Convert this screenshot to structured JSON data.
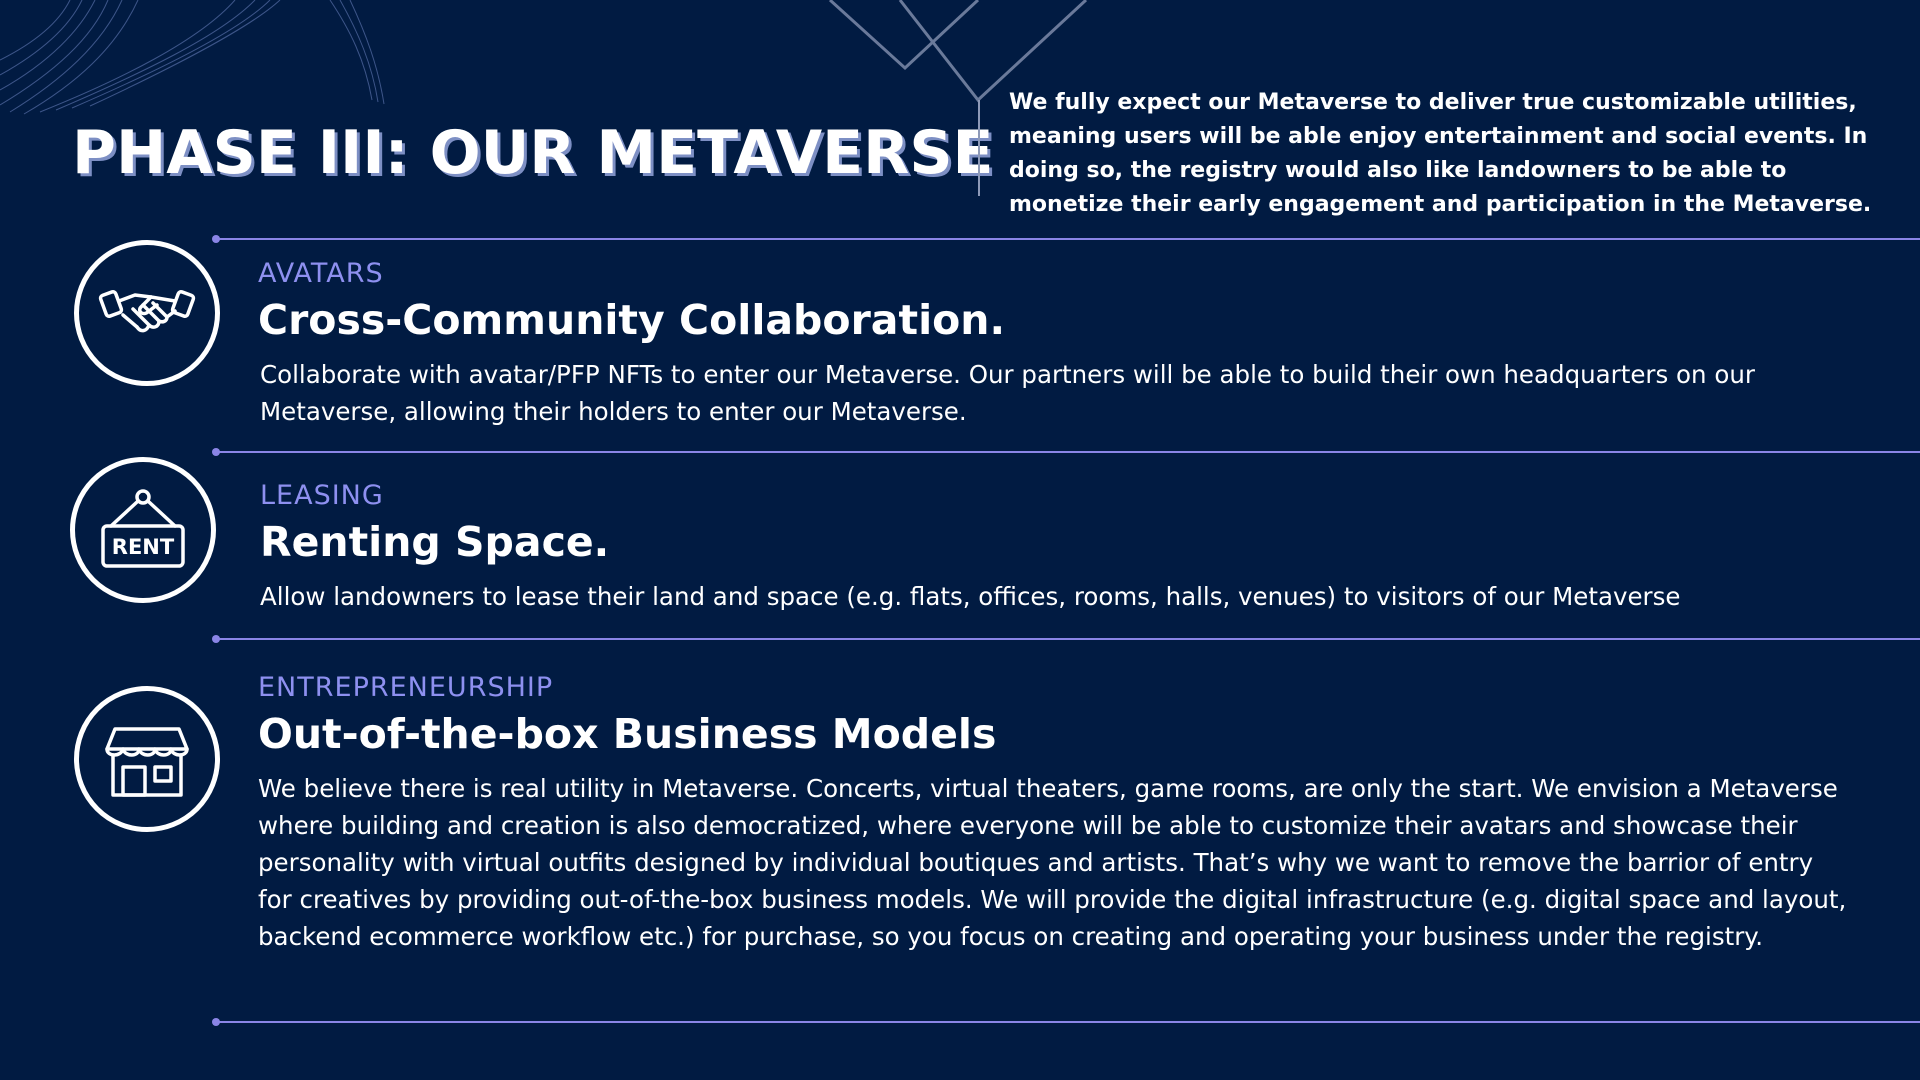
{
  "header": {
    "title": "PHASE III: OUR METAVERSE",
    "intro": "We fully expect our Metaverse to deliver true customizable utilities, meaning users will be able enjoy entertainment and social events. In doing so, the registry would also like landowners to be able to monetize their early engagement and participation in the Metaverse."
  },
  "sections": [
    {
      "category": "AVATARS",
      "heading": "Cross-Community Collaboration.",
      "description": "Collaborate with avatar/PFP NFTs to enter our Metaverse. Our partners will be able to build their own headquarters on our Metaverse, allowing their holders to enter our Metaverse.",
      "icon": "handshake-icon"
    },
    {
      "category": "LEASING",
      "heading": "Renting Space.",
      "description": "Allow landowners to lease their land and space (e.g. flats, offices, rooms, halls, venues) to visitors of our Metaverse",
      "icon": "rent-sign-icon",
      "icon_text": "RENT"
    },
    {
      "category": "ENTREPRENEURSHIP",
      "heading": "Out-of-the-box Business Models",
      "description": "We believe there is real utility in Metaverse. Concerts, virtual theaters, game rooms, are only the start. We envision a Metaverse where building and creation is also democratized, where everyone will be able to customize their avatars and showcase their personality with virtual outfits designed by individual boutiques and artists. That’s why we want to remove the barrior of entry for creatives by providing out-of-the-box business models. We will provide the digital infrastructure (e.g. digital space and layout, backend ecommerce workflow etc.) for purchase, so you focus on creating and operating your business under the registry.",
      "icon": "storefront-icon"
    }
  ],
  "colors": {
    "background": "#011b42",
    "accent": "#8e90f0",
    "separator": "#8a85e6",
    "text": "#ffffff",
    "title_shadow": "#7d8fc4"
  }
}
